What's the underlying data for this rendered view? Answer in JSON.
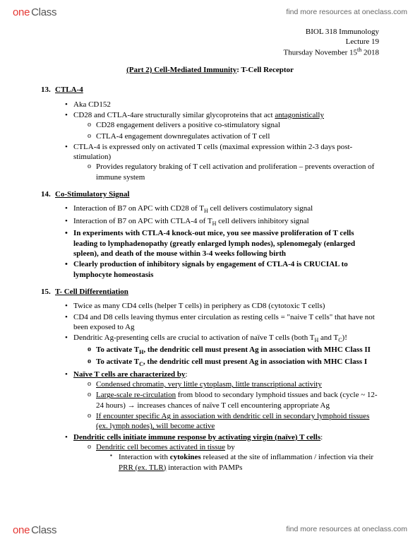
{
  "brand": {
    "part1": "one",
    "part2": "Class"
  },
  "header_link": "find more resources at oneclass.com",
  "footer_link": "find more resources at oneclass.com",
  "doc": {
    "course": "BIOL 318 Immunology",
    "lecture": "Lecture 19",
    "date_prefix": "Thursday November 15",
    "date_sup": "th",
    "date_year": " 2018",
    "title_underline": "(Part 2) Cell-Mediated Immunity",
    "title_rest": ": T-Cell Receptor"
  },
  "s13": {
    "num": "13.",
    "label": "CTLA-4",
    "b1": "Aka CD152",
    "b2a": "CD28 and CTLA-4are structurally similar glycoproteins that act ",
    "b2b": "antagonistically",
    "b2s1": "CD28 engagement delivers a positive co-stimulatory signal",
    "b2s2": "CTLA-4 engagement downregulates activation of T cell",
    "b3": "CTLA-4 is expressed only on activated T cells (maximal expression within 2-3 days post-stimulation)",
    "b3s1": "Provides regulatory braking of T cell activation and proliferation – prevents overaction of immune system"
  },
  "s14": {
    "num": "14.",
    "label": "Co-Stimulatory Signal",
    "b1a": "Interaction of B7 on APC with CD28 of T",
    "b1b": " cell delivers costimulatory signal",
    "b2a": "Interaction of B7 on APC with CTLA-4 of T",
    "b2b": " cell delivers inhibitory signal",
    "b3": "In experiments with CTLA-4 knock-out mice, you see massive proliferation of T cells leading to lymphadenopathy (greatly enlarged lymph nodes), splenomegaly (enlarged spleen), and death of the mouse within 3-4 weeks following birth",
    "b4": "Clearly production of inhibitory signals by engagement of CTLA-4 is CRUCIAL to lymphocyte homeostasis"
  },
  "s15": {
    "num": "15.",
    "label": "T- Cell Differentiation",
    "b1": "Twice as many CD4 cells (helper T cells) in periphery as CD8 (cytotoxic T cells)",
    "b2": "CD4 and D8 cells leaving thymus enter circulation as resting cells = \"naive T cells\" that have not been exposed to Ag",
    "b3a": "Dendritic Ag-presenting cells are crucial to activation of naïve T cells (both T",
    "b3b": " and T",
    "b3c": ")!",
    "b3s1a": "To activate T",
    "b3s1b": ", the dendritic cell must present Ag in association with MHC Class II",
    "b3s2a": "To activate T",
    "b3s2b": ", the dendritic cell must present Ag in association with MHC Class I",
    "b4": "Naïve T cells are characterized by",
    "b4s1": "Condensed chromatin, very little cytoplasm, little transcriptional activity",
    "b4s2a": "Large-scale re-circulation",
    "b4s2b": " from blood to secondary lymphoid tissues and back (cycle ~ 12-24 hours) → increases chances of naïve T cell encountering appropriate Ag",
    "b4s3": "If encounter specific Ag in association with dendritic cell in secondary lymphoid tissues (ex. lymph nodes), will become active",
    "b5": "Dendritic cells initiate immune response by activating virgin (naïve) T cells",
    "b5s1": "Dendritic cell becomes activated in tissue",
    "b5s1by": " by",
    "b5ss1a": "Interaction with ",
    "b5ss1b": "cytokines",
    "b5ss1c": " released at the site of inflammation / infection via their ",
    "b5ss1d": "PRR (ex. TLR)",
    "b5ss1e": " interaction with PAMPs"
  },
  "subscripts": {
    "H": "H",
    "C": "C"
  }
}
